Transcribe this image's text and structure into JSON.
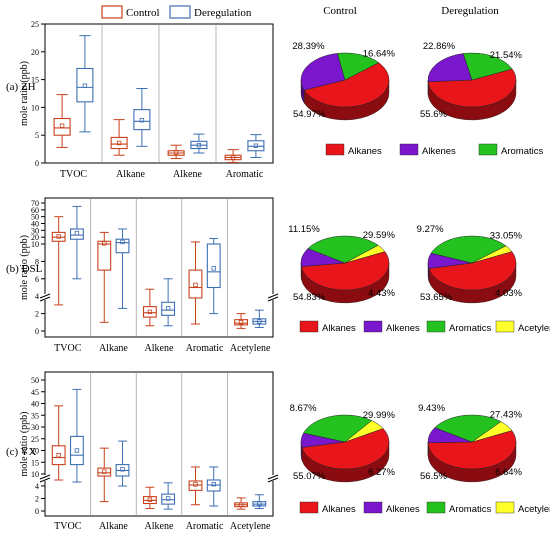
{
  "legend": {
    "control": "Control",
    "deregulation": "Deregulation"
  },
  "colors": {
    "control": "#c8401c",
    "deregulation": "#3d6fb4",
    "alkanes": "#e8151b",
    "alkenes": "#7a16cc",
    "aromatics": "#23c21f",
    "acetylene": "#ffff2a"
  },
  "pie_titles": {
    "control": "Control",
    "deregulation": "Deregulation"
  },
  "chart_data": [
    {
      "type": "box",
      "panel": "(a)",
      "site": "ZH",
      "ylabel": "mole ratio (ppb)",
      "ylim": [
        0,
        25
      ],
      "yticks": [
        0,
        5,
        10,
        15,
        20,
        25
      ],
      "categories": [
        "TVOC",
        "Alkane",
        "Alkene",
        "Aromatic"
      ],
      "series": [
        {
          "name": "Control",
          "boxes": [
            {
              "min": 2.8,
              "q1": 5.0,
              "median": 6.3,
              "q3": 8.0,
              "max": 12.3,
              "mean": 6.7
            },
            {
              "min": 1.4,
              "q1": 2.6,
              "median": 3.4,
              "q3": 4.6,
              "max": 7.8,
              "mean": 3.6
            },
            {
              "min": 0.8,
              "q1": 1.4,
              "median": 1.8,
              "q3": 2.2,
              "max": 3.2,
              "mean": 1.9
            },
            {
              "min": 0.1,
              "q1": 0.6,
              "median": 1.0,
              "q3": 1.4,
              "max": 2.4,
              "mean": 1.0
            }
          ]
        },
        {
          "name": "Deregulation",
          "boxes": [
            {
              "min": 5.6,
              "q1": 11.0,
              "median": 13.6,
              "q3": 17.0,
              "max": 22.9,
              "mean": 13.9
            },
            {
              "min": 3.0,
              "q1": 6.0,
              "median": 7.5,
              "q3": 9.6,
              "max": 13.4,
              "mean": 7.7
            },
            {
              "min": 1.8,
              "q1": 2.6,
              "median": 3.2,
              "q3": 3.9,
              "max": 5.2,
              "mean": 3.2
            },
            {
              "min": 1.0,
              "q1": 2.2,
              "median": 3.0,
              "q3": 4.0,
              "max": 5.1,
              "mean": 3.1
            }
          ]
        }
      ]
    },
    {
      "type": "box",
      "panel": "(b)",
      "site": "DSL",
      "ylabel": "mole ratio (ppb)",
      "axis_break": [
        3,
        10
      ],
      "yticks": [
        0,
        2,
        4,
        6,
        8,
        10,
        20,
        30,
        40,
        50,
        60,
        70
      ],
      "categories": [
        "TVOC",
        "Alkane",
        "Alkene",
        "Aromatic",
        "Acetylene"
      ],
      "series": [
        {
          "name": "Control",
          "boxes": [
            {
              "min": 3,
              "q1": 14,
              "median": 20,
              "q3": 27,
              "max": 50,
              "mean": 21
            },
            {
              "min": 1,
              "q1": 7,
              "median": 10,
              "q3": 14,
              "max": 27,
              "mean": 11
            },
            {
              "min": 0.6,
              "q1": 1.6,
              "median": 2.1,
              "q3": 2.8,
              "max": 4.8,
              "mean": 2.2
            },
            {
              "min": 0.8,
              "q1": 3.8,
              "median": 5.0,
              "q3": 7.0,
              "max": 13,
              "mean": 5.3
            },
            {
              "min": 0.3,
              "q1": 0.7,
              "median": 0.9,
              "q3": 1.3,
              "max": 2.0,
              "mean": 1.0
            }
          ]
        },
        {
          "name": "Deregulation",
          "boxes": [
            {
              "min": 6,
              "q1": 17,
              "median": 23,
              "q3": 32,
              "max": 65,
              "mean": 26
            },
            {
              "min": 2.6,
              "q1": 9,
              "median": 12,
              "q3": 17,
              "max": 32,
              "mean": 13
            },
            {
              "min": 0.6,
              "q1": 1.8,
              "median": 2.4,
              "q3": 3.3,
              "max": 6.0,
              "mean": 2.6
            },
            {
              "min": 2.0,
              "q1": 5.0,
              "median": 6.8,
              "q3": 10,
              "max": 18,
              "mean": 7.2
            },
            {
              "min": 0.4,
              "q1": 0.8,
              "median": 1.1,
              "q3": 1.4,
              "max": 2.4,
              "mean": 1.1
            }
          ]
        }
      ]
    },
    {
      "type": "box",
      "panel": "(c)",
      "site": "YX",
      "ylabel": "mole ratio (ppb)",
      "axis_break": [
        3,
        10
      ],
      "yticks": [
        0,
        2,
        4,
        10,
        15,
        20,
        25,
        30,
        35,
        40,
        45,
        50
      ],
      "categories": [
        "TVOC",
        "Alkane",
        "Alkene",
        "Aromatic",
        "Acetylene"
      ],
      "series": [
        {
          "name": "Control",
          "boxes": [
            {
              "min": 7,
              "q1": 14,
              "median": 17,
              "q3": 22,
              "max": 39,
              "mean": 18
            },
            {
              "min": 1.5,
              "q1": 9,
              "median": 10.5,
              "q3": 12.5,
              "max": 21,
              "mean": 11
            },
            {
              "min": 0.4,
              "q1": 1.2,
              "median": 1.7,
              "q3": 2.3,
              "max": 3.8,
              "mean": 1.8
            },
            {
              "min": 1.0,
              "q1": 3.3,
              "median": 4.5,
              "q3": 6.5,
              "max": 13,
              "mean": 4.8
            },
            {
              "min": 0.3,
              "q1": 0.7,
              "median": 1.0,
              "q3": 1.3,
              "max": 2.1,
              "mean": 1.0
            }
          ]
        },
        {
          "name": "Deregulation",
          "boxes": [
            {
              "min": 6,
              "q1": 14,
              "median": 18,
              "q3": 26,
              "max": 46,
              "mean": 20
            },
            {
              "min": 4,
              "q1": 9,
              "median": 11.5,
              "q3": 14,
              "max": 24,
              "mean": 12
            },
            {
              "min": 0.3,
              "q1": 1.1,
              "median": 1.8,
              "q3": 2.7,
              "max": 5.6,
              "mean": 2.0
            },
            {
              "min": 0.8,
              "q1": 3.2,
              "median": 4.5,
              "q3": 7,
              "max": 13,
              "mean": 4.9
            },
            {
              "min": 0.4,
              "q1": 0.8,
              "median": 1.1,
              "q3": 1.5,
              "max": 2.6,
              "mean": 1.2
            }
          ]
        }
      ]
    },
    {
      "type": "pie",
      "panel": "(a)",
      "site": "ZH",
      "scenario": "Control",
      "slices": [
        {
          "name": "Alkanes",
          "value": 54.97,
          "label": "54.97%"
        },
        {
          "name": "Alkenes",
          "value": 28.39,
          "label": "28.39%"
        },
        {
          "name": "Aromatics",
          "value": 16.64,
          "label": "16.64%"
        }
      ]
    },
    {
      "type": "pie",
      "panel": "(a)",
      "site": "ZH",
      "scenario": "Deregulation",
      "slices": [
        {
          "name": "Alkanes",
          "value": 55.6,
          "label": "55.6%"
        },
        {
          "name": "Alkenes",
          "value": 22.86,
          "label": "22.86%"
        },
        {
          "name": "Aromatics",
          "value": 21.54,
          "label": "21.54%"
        }
      ]
    },
    {
      "type": "pie",
      "panel": "(b)",
      "site": "DSL",
      "scenario": "Control",
      "slices": [
        {
          "name": "Alkanes",
          "value": 54.83,
          "label": "54.83%"
        },
        {
          "name": "Alkenes",
          "value": 11.15,
          "label": "11.15%"
        },
        {
          "name": "Aromatics",
          "value": 29.59,
          "label": "29.59%"
        },
        {
          "name": "Acetylene",
          "value": 4.43,
          "label": "4.43%"
        }
      ]
    },
    {
      "type": "pie",
      "panel": "(b)",
      "site": "DSL",
      "scenario": "Deregulation",
      "slices": [
        {
          "name": "Alkanes",
          "value": 53.65,
          "label": "53.65%"
        },
        {
          "name": "Alkenes",
          "value": 9.27,
          "label": "9.27%"
        },
        {
          "name": "Aromatics",
          "value": 33.05,
          "label": "33.05%"
        },
        {
          "name": "Acetylene",
          "value": 4.03,
          "label": "4.03%"
        }
      ]
    },
    {
      "type": "pie",
      "panel": "(c)",
      "site": "YX",
      "scenario": "Control",
      "slices": [
        {
          "name": "Alkanes",
          "value": 55.07,
          "label": "55.07%"
        },
        {
          "name": "Alkenes",
          "value": 8.67,
          "label": "8.67%"
        },
        {
          "name": "Aromatics",
          "value": 29.99,
          "label": "29.99%"
        },
        {
          "name": "Acetylene",
          "value": 6.27,
          "label": "6.27%"
        }
      ]
    },
    {
      "type": "pie",
      "panel": "(c)",
      "site": "YX",
      "scenario": "Deregulation",
      "slices": [
        {
          "name": "Alkanes",
          "value": 56.5,
          "label": "56.5%"
        },
        {
          "name": "Alkenes",
          "value": 9.43,
          "label": "9.43%"
        },
        {
          "name": "Aromatics",
          "value": 27.43,
          "label": "27.43%"
        },
        {
          "name": "Acetylene",
          "value": 6.64,
          "label": "6.64%"
        }
      ]
    }
  ],
  "pie_legends": [
    [
      "Alkanes",
      "Alkenes",
      "Aromatics"
    ],
    [
      "Alkanes",
      "Alkenes",
      "Aromatics",
      "Acetylene"
    ],
    [
      "Alkanes",
      "Alkenes",
      "Aromatics",
      "Acetylene"
    ]
  ]
}
